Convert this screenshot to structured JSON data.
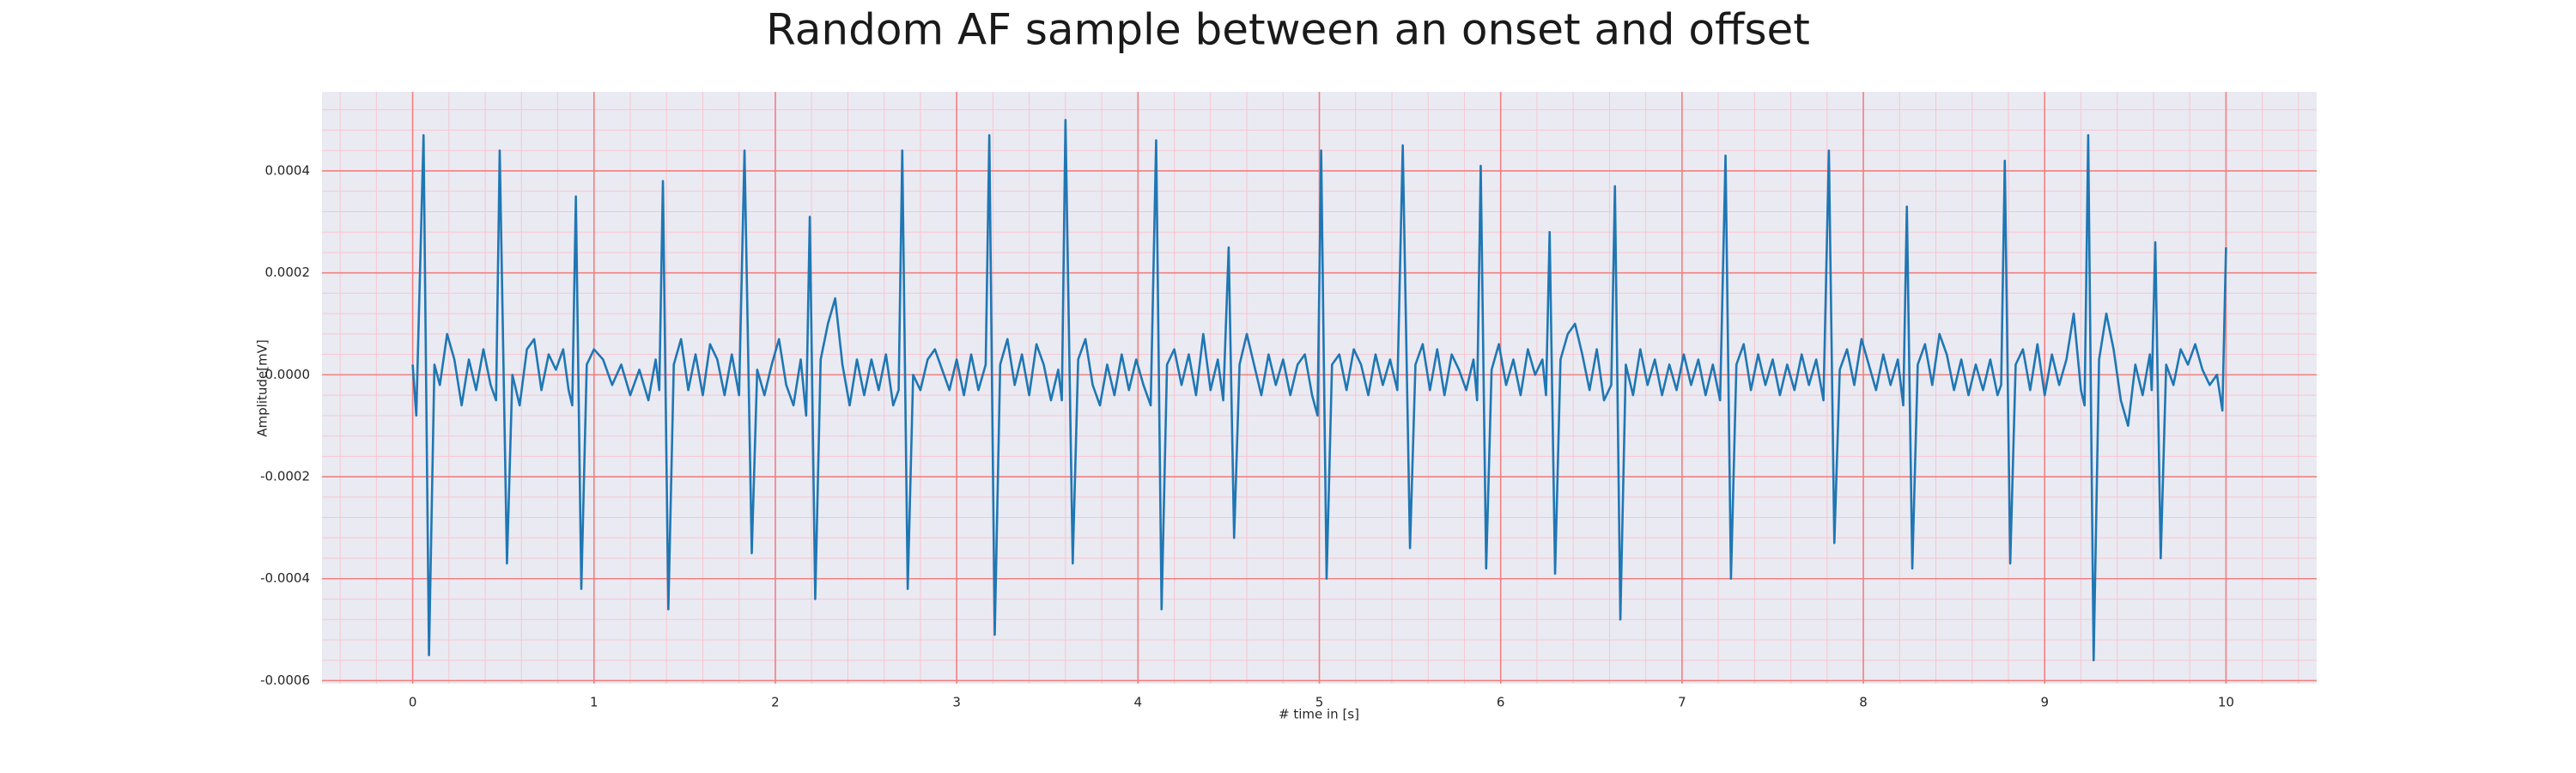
{
  "chart_data": {
    "type": "line",
    "title": "Random AF sample between an onset and offset",
    "xlabel": "# time in [s]",
    "ylabel": "Amplitude[mV]",
    "color": "#1f77b4",
    "grid": true,
    "grid_color": "#f08080",
    "minor_grid_color": "#f7c6cf",
    "background": "#eaeaf2",
    "xlim": [
      -0.5,
      10.5
    ],
    "ylim": [
      -0.000606,
      0.000555
    ],
    "xticks": [
      0,
      1,
      2,
      3,
      4,
      5,
      6,
      7,
      8,
      9,
      10
    ],
    "yticks": [
      -0.0006,
      -0.0004,
      -0.0002,
      {
        "value": 0,
        "label": "0.0000"
      },
      0.0002,
      0.0004
    ],
    "x": [
      0.0,
      0.02,
      0.06,
      0.09,
      0.12,
      0.15,
      0.19,
      0.23,
      0.27,
      0.31,
      0.35,
      0.39,
      0.43,
      0.46,
      0.48,
      0.52,
      0.55,
      0.59,
      0.63,
      0.67,
      0.71,
      0.75,
      0.79,
      0.83,
      0.86,
      0.88,
      0.9,
      0.93,
      0.96,
      1.0,
      1.05,
      1.1,
      1.15,
      1.2,
      1.25,
      1.3,
      1.34,
      1.36,
      1.38,
      1.41,
      1.44,
      1.48,
      1.52,
      1.56,
      1.6,
      1.64,
      1.68,
      1.72,
      1.76,
      1.8,
      1.83,
      1.87,
      1.9,
      1.94,
      1.98,
      2.02,
      2.06,
      2.1,
      2.14,
      2.17,
      2.19,
      2.22,
      2.25,
      2.29,
      2.33,
      2.37,
      2.41,
      2.45,
      2.49,
      2.53,
      2.57,
      2.61,
      2.65,
      2.68,
      2.7,
      2.73,
      2.76,
      2.8,
      2.84,
      2.88,
      2.92,
      2.96,
      3.0,
      3.04,
      3.08,
      3.12,
      3.16,
      3.18,
      3.21,
      3.24,
      3.28,
      3.32,
      3.36,
      3.4,
      3.44,
      3.48,
      3.52,
      3.56,
      3.58,
      3.6,
      3.64,
      3.67,
      3.71,
      3.75,
      3.79,
      3.83,
      3.87,
      3.91,
      3.95,
      3.99,
      4.03,
      4.07,
      4.1,
      4.13,
      4.16,
      4.2,
      4.24,
      4.28,
      4.32,
      4.36,
      4.4,
      4.44,
      4.47,
      4.5,
      4.53,
      4.56,
      4.6,
      4.64,
      4.68,
      4.72,
      4.76,
      4.8,
      4.84,
      4.88,
      4.92,
      4.96,
      4.99,
      5.01,
      5.04,
      5.07,
      5.11,
      5.15,
      5.19,
      5.23,
      5.27,
      5.31,
      5.35,
      5.39,
      5.43,
      5.46,
      5.5,
      5.53,
      5.57,
      5.61,
      5.65,
      5.69,
      5.73,
      5.77,
      5.81,
      5.85,
      5.87,
      5.89,
      5.92,
      5.95,
      5.99,
      6.03,
      6.07,
      6.11,
      6.15,
      6.19,
      6.23,
      6.25,
      6.27,
      6.3,
      6.33,
      6.37,
      6.41,
      6.45,
      6.49,
      6.53,
      6.57,
      6.61,
      6.63,
      6.66,
      6.69,
      6.73,
      6.77,
      6.81,
      6.85,
      6.89,
      6.93,
      6.97,
      7.01,
      7.05,
      7.09,
      7.13,
      7.17,
      7.21,
      7.24,
      7.27,
      7.3,
      7.34,
      7.38,
      7.42,
      7.46,
      7.5,
      7.54,
      7.58,
      7.62,
      7.66,
      7.7,
      7.74,
      7.78,
      7.81,
      7.84,
      7.87,
      7.91,
      7.95,
      7.99,
      8.03,
      8.07,
      8.11,
      8.15,
      8.19,
      8.22,
      8.24,
      8.27,
      8.3,
      8.34,
      8.38,
      8.42,
      8.46,
      8.5,
      8.54,
      8.58,
      8.62,
      8.66,
      8.7,
      8.74,
      8.76,
      8.78,
      8.81,
      8.84,
      8.88,
      8.92,
      8.96,
      9.0,
      9.04,
      9.08,
      9.12,
      9.16,
      9.2,
      9.22,
      9.24,
      9.27,
      9.3,
      9.34,
      9.38,
      9.42,
      9.46,
      9.5,
      9.54,
      9.58,
      9.59,
      9.61,
      9.64,
      9.67,
      9.71,
      9.75,
      9.79,
      9.83,
      9.87,
      9.91,
      9.95,
      9.98,
      10.0
    ],
    "values": [
      2e-05,
      -8e-05,
      0.00047,
      -0.00055,
      2e-05,
      -2e-05,
      8e-05,
      3e-05,
      -6e-05,
      3e-05,
      -3e-05,
      5e-05,
      -2e-05,
      -5e-05,
      0.00044,
      -0.00037,
      0,
      -6e-05,
      5e-05,
      7e-05,
      -3e-05,
      4e-05,
      1e-05,
      5e-05,
      -3e-05,
      -6e-05,
      0.00035,
      -0.00042,
      2e-05,
      5e-05,
      3e-05,
      -2e-05,
      2e-05,
      -4e-05,
      1e-05,
      -5e-05,
      3e-05,
      -3e-05,
      0.00038,
      -0.00046,
      2e-05,
      7e-05,
      -3e-05,
      4e-05,
      -4e-05,
      6e-05,
      3e-05,
      -4e-05,
      4e-05,
      -4e-05,
      0.00044,
      -0.00035,
      1e-05,
      -4e-05,
      2e-05,
      7e-05,
      -2e-05,
      -6e-05,
      3e-05,
      -8e-05,
      0.00031,
      -0.00044,
      3e-05,
      0.0001,
      0.00015,
      2e-05,
      -6e-05,
      3e-05,
      -4e-05,
      3e-05,
      -3e-05,
      4e-05,
      -6e-05,
      -3e-05,
      0.00044,
      -0.00042,
      0,
      -3e-05,
      3e-05,
      5e-05,
      1e-05,
      -3e-05,
      3e-05,
      -4e-05,
      4e-05,
      -3e-05,
      2e-05,
      0.00047,
      -0.00051,
      2e-05,
      7e-05,
      -2e-05,
      4e-05,
      -4e-05,
      6e-05,
      2e-05,
      -5e-05,
      1e-05,
      -5e-05,
      0.0005,
      -0.00037,
      3e-05,
      7e-05,
      -2e-05,
      -6e-05,
      2e-05,
      -4e-05,
      4e-05,
      -3e-05,
      3e-05,
      -2e-05,
      -6e-05,
      0.00046,
      -0.00046,
      2e-05,
      5e-05,
      -2e-05,
      4e-05,
      -4e-05,
      8e-05,
      -3e-05,
      3e-05,
      -5e-05,
      0.00025,
      -0.00032,
      2e-05,
      8e-05,
      2e-05,
      -4e-05,
      4e-05,
      -2e-05,
      3e-05,
      -4e-05,
      2e-05,
      4e-05,
      -4e-05,
      -8e-05,
      0.00044,
      -0.0004,
      2e-05,
      4e-05,
      -3e-05,
      5e-05,
      2e-05,
      -4e-05,
      4e-05,
      -2e-05,
      3e-05,
      -3e-05,
      0.00045,
      -0.00034,
      2e-05,
      6e-05,
      -3e-05,
      5e-05,
      -4e-05,
      4e-05,
      1e-05,
      -3e-05,
      3e-05,
      -5e-05,
      0.00041,
      -0.00038,
      1e-05,
      6e-05,
      -2e-05,
      3e-05,
      -4e-05,
      5e-05,
      0,
      3e-05,
      -4e-05,
      0.00028,
      -0.00039,
      3e-05,
      8e-05,
      0.0001,
      4e-05,
      -3e-05,
      5e-05,
      -5e-05,
      -2e-05,
      0.00037,
      -0.00048,
      2e-05,
      -4e-05,
      5e-05,
      -2e-05,
      3e-05,
      -4e-05,
      2e-05,
      -3e-05,
      4e-05,
      -2e-05,
      3e-05,
      -4e-05,
      2e-05,
      -5e-05,
      0.00043,
      -0.0004,
      2e-05,
      6e-05,
      -3e-05,
      4e-05,
      -2e-05,
      3e-05,
      -4e-05,
      2e-05,
      -3e-05,
      4e-05,
      -2e-05,
      3e-05,
      -5e-05,
      0.00044,
      -0.00033,
      1e-05,
      5e-05,
      -2e-05,
      7e-05,
      2e-05,
      -3e-05,
      4e-05,
      -2e-05,
      3e-05,
      -6e-05,
      0.00033,
      -0.00038,
      2e-05,
      6e-05,
      -2e-05,
      8e-05,
      4e-05,
      -3e-05,
      3e-05,
      -4e-05,
      2e-05,
      -3e-05,
      3e-05,
      -4e-05,
      -2e-05,
      0.00042,
      -0.00037,
      2e-05,
      5e-05,
      -3e-05,
      6e-05,
      -4e-05,
      4e-05,
      -2e-05,
      3e-05,
      0.00012,
      -3e-05,
      -6e-05,
      0.00047,
      -0.00056,
      3e-05,
      0.00012,
      5e-05,
      -5e-05,
      -0.0001,
      2e-05,
      -4e-05,
      4e-05,
      -3e-05,
      0.00026,
      -0.00036,
      2e-05,
      -2e-05,
      5e-05,
      2e-05,
      6e-05,
      1e-05,
      -2e-05,
      0,
      -7e-05,
      0.00025
    ]
  }
}
